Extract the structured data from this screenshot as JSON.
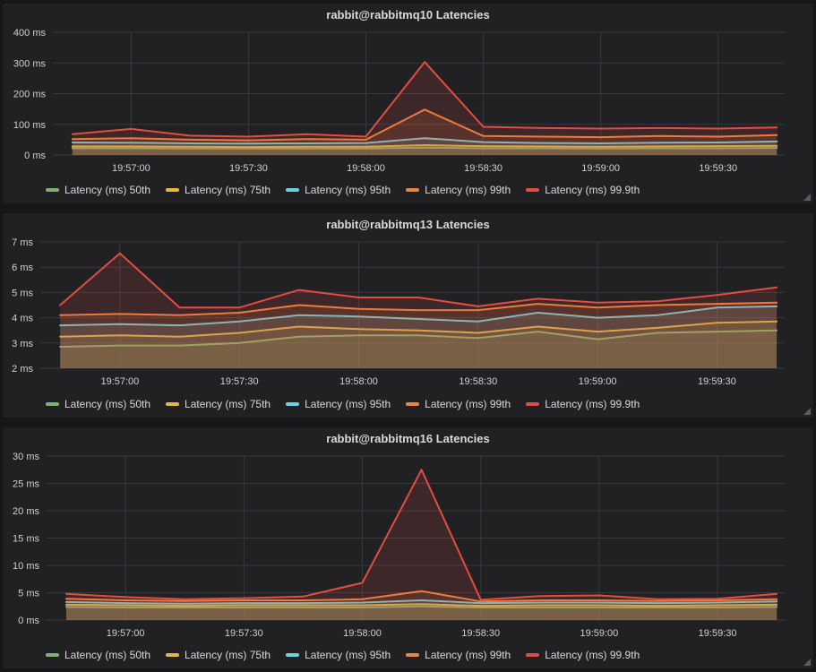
{
  "theme": {
    "page_bg": "#161719",
    "panel_bg": "#212124",
    "grid_color": "#37393d",
    "title_color": "#d8d9da",
    "axis_text_color": "#cfd0d1",
    "fill_opacity": 0.15
  },
  "chart_data": [
    {
      "type": "area",
      "title": "rabbit@rabbitmq10 Latencies",
      "y_unit": "ms",
      "ylim": [
        0,
        400
      ],
      "y_ticks": [
        400,
        300,
        200,
        100,
        0
      ],
      "x_domain": [
        -5,
        182
      ],
      "x_base_time": "19:56:45",
      "x_seconds": [
        0,
        15,
        30,
        45,
        60,
        75,
        90,
        105,
        120,
        135,
        150,
        165,
        180
      ],
      "x_ticks": [
        {
          "t": 15,
          "label": "19:57:00"
        },
        {
          "t": 45,
          "label": "19:57:30"
        },
        {
          "t": 75,
          "label": "19:58:00"
        },
        {
          "t": 105,
          "label": "19:58:30"
        },
        {
          "t": 135,
          "label": "19:59:00"
        },
        {
          "t": 165,
          "label": "19:59:30"
        }
      ],
      "legend_position": "bottom",
      "grid": true,
      "series": [
        {
          "name": "Latency (ms) 50th",
          "color": "#7EB26D",
          "values": [
            22,
            22,
            21,
            21,
            21,
            21,
            24,
            22,
            22,
            21,
            22,
            22,
            23
          ]
        },
        {
          "name": "Latency (ms) 75th",
          "color": "#EAB839",
          "values": [
            28,
            28,
            27,
            26,
            27,
            27,
            32,
            29,
            28,
            27,
            28,
            29,
            30
          ]
        },
        {
          "name": "Latency (ms) 95th",
          "color": "#6ED0E0",
          "values": [
            41,
            40,
            38,
            37,
            38,
            39,
            55,
            42,
            39,
            38,
            40,
            41,
            44
          ]
        },
        {
          "name": "Latency (ms) 99th",
          "color": "#EF843C",
          "values": [
            52,
            55,
            50,
            48,
            52,
            50,
            148,
            62,
            60,
            58,
            62,
            60,
            65
          ]
        },
        {
          "name": "Latency (ms) 99.9th",
          "color": "#E24D42",
          "values": [
            68,
            85,
            63,
            60,
            68,
            60,
            303,
            92,
            88,
            86,
            88,
            86,
            90
          ]
        }
      ]
    },
    {
      "type": "area",
      "title": "rabbit@rabbitmq13 Latencies",
      "y_unit": "ms",
      "ylim": [
        2,
        7
      ],
      "y_ticks": [
        7,
        6,
        5,
        4,
        3,
        2
      ],
      "x_domain": [
        -5,
        182
      ],
      "x_base_time": "19:56:45",
      "x_seconds": [
        0,
        15,
        30,
        45,
        60,
        75,
        90,
        105,
        120,
        135,
        150,
        165,
        180
      ],
      "x_ticks": [
        {
          "t": 15,
          "label": "19:57:00"
        },
        {
          "t": 45,
          "label": "19:57:30"
        },
        {
          "t": 75,
          "label": "19:58:00"
        },
        {
          "t": 105,
          "label": "19:58:30"
        },
        {
          "t": 135,
          "label": "19:59:00"
        },
        {
          "t": 165,
          "label": "19:59:30"
        }
      ],
      "legend_position": "bottom",
      "grid": true,
      "series": [
        {
          "name": "Latency (ms) 50th",
          "color": "#7EB26D",
          "values": [
            2.85,
            2.9,
            2.9,
            3.0,
            3.25,
            3.3,
            3.3,
            3.2,
            3.45,
            3.15,
            3.4,
            3.45,
            3.5
          ]
        },
        {
          "name": "Latency (ms) 75th",
          "color": "#EAB839",
          "values": [
            3.25,
            3.3,
            3.25,
            3.4,
            3.65,
            3.55,
            3.5,
            3.4,
            3.65,
            3.45,
            3.6,
            3.8,
            3.85
          ]
        },
        {
          "name": "Latency (ms) 95th",
          "color": "#6ED0E0",
          "values": [
            3.7,
            3.75,
            3.7,
            3.85,
            4.1,
            4.05,
            3.95,
            3.85,
            4.2,
            4.0,
            4.1,
            4.4,
            4.45
          ]
        },
        {
          "name": "Latency (ms) 99th",
          "color": "#EF843C",
          "values": [
            4.1,
            4.15,
            4.1,
            4.2,
            4.5,
            4.35,
            4.3,
            4.3,
            4.55,
            4.4,
            4.5,
            4.55,
            4.6
          ]
        },
        {
          "name": "Latency (ms) 99.9th",
          "color": "#E24D42",
          "values": [
            4.5,
            6.55,
            4.4,
            4.4,
            5.1,
            4.8,
            4.8,
            4.45,
            4.75,
            4.6,
            4.65,
            4.9,
            5.2
          ]
        }
      ]
    },
    {
      "type": "area",
      "title": "rabbit@rabbitmq16 Latencies",
      "y_unit": "ms",
      "ylim": [
        0,
        30
      ],
      "y_ticks": [
        30,
        25,
        20,
        15,
        10,
        5,
        0
      ],
      "x_domain": [
        -5,
        182
      ],
      "x_base_time": "19:56:45",
      "x_seconds": [
        0,
        15,
        30,
        45,
        60,
        75,
        90,
        105,
        120,
        135,
        150,
        165,
        180
      ],
      "x_ticks": [
        {
          "t": 15,
          "label": "19:57:00"
        },
        {
          "t": 45,
          "label": "19:57:30"
        },
        {
          "t": 75,
          "label": "19:58:00"
        },
        {
          "t": 105,
          "label": "19:58:30"
        },
        {
          "t": 135,
          "label": "19:59:00"
        },
        {
          "t": 165,
          "label": "19:59:30"
        }
      ],
      "legend_position": "bottom",
      "grid": true,
      "series": [
        {
          "name": "Latency (ms) 50th",
          "color": "#7EB26D",
          "values": [
            2.4,
            2.3,
            2.3,
            2.3,
            2.3,
            2.3,
            2.5,
            2.3,
            2.3,
            2.3,
            2.3,
            2.3,
            2.4
          ]
        },
        {
          "name": "Latency (ms) 75th",
          "color": "#EAB839",
          "values": [
            2.8,
            2.7,
            2.6,
            2.7,
            2.7,
            2.7,
            2.9,
            2.6,
            2.7,
            2.7,
            2.6,
            2.7,
            2.8
          ]
        },
        {
          "name": "Latency (ms) 95th",
          "color": "#6ED0E0",
          "values": [
            3.3,
            3.1,
            3.0,
            3.1,
            3.1,
            3.2,
            3.6,
            3.1,
            3.2,
            3.2,
            3.1,
            3.2,
            3.4
          ]
        },
        {
          "name": "Latency (ms) 99th",
          "color": "#EF843C",
          "values": [
            3.9,
            3.6,
            3.5,
            3.6,
            3.6,
            3.8,
            5.3,
            3.4,
            3.6,
            3.6,
            3.5,
            3.6,
            3.8
          ]
        },
        {
          "name": "Latency (ms) 99.9th",
          "color": "#E24D42",
          "values": [
            4.8,
            4.2,
            3.8,
            4.0,
            4.3,
            6.8,
            27.5,
            3.7,
            4.4,
            4.5,
            3.8,
            3.9,
            4.8
          ]
        }
      ]
    }
  ]
}
